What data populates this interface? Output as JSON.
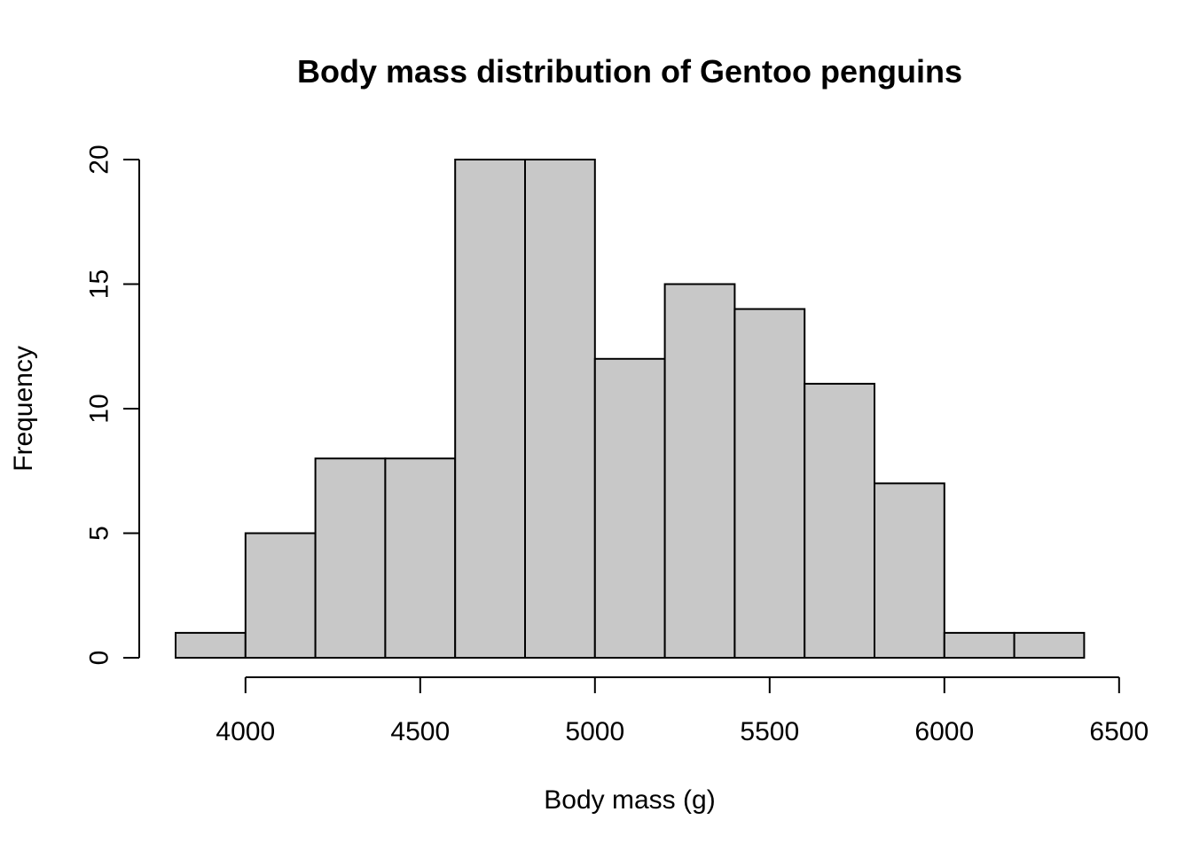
{
  "chart_data": {
    "type": "bar",
    "title": "Body mass distribution of Gentoo penguins",
    "xlabel": "Body mass (g)",
    "ylabel": "Frequency",
    "bin_edges": [
      3800,
      4000,
      4200,
      4400,
      4600,
      4800,
      5000,
      5200,
      5400,
      5600,
      5800,
      6000,
      6200,
      6400
    ],
    "values": [
      1,
      5,
      8,
      8,
      20,
      20,
      12,
      15,
      14,
      11,
      7,
      1,
      1
    ],
    "xlim": [
      3800,
      6400
    ],
    "ylim": [
      0,
      20
    ],
    "x_ticks": [
      4000,
      4500,
      5000,
      5500,
      6000,
      6500
    ],
    "y_ticks": [
      0,
      5,
      10,
      15,
      20
    ],
    "grid": false,
    "bar_color": "#c8c8c8",
    "edge_color": "#000000"
  }
}
